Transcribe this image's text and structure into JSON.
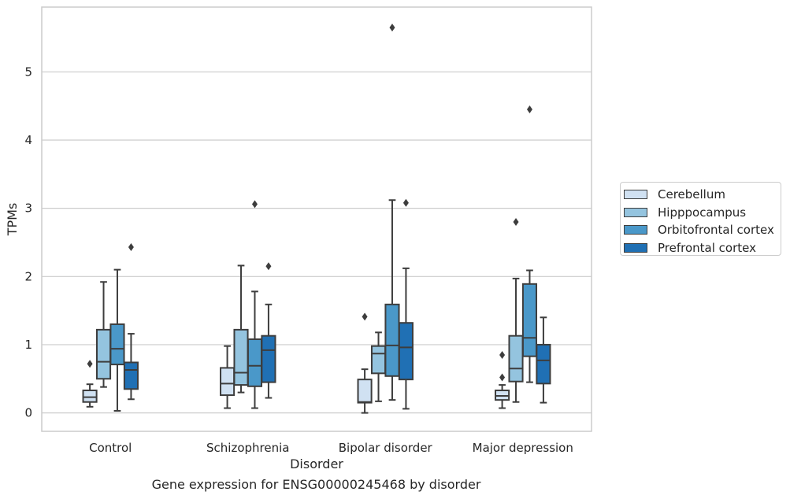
{
  "chart_data": {
    "type": "box",
    "categories": [
      "Control",
      "Schizophrenia",
      "Bipolar disorder",
      "Major depression"
    ],
    "xlabel": "Disorder",
    "ylabel": "TPMs",
    "ylim": [
      -0.27,
      5.95
    ],
    "yticks": [
      0,
      1,
      2,
      3,
      4,
      5
    ],
    "grid": true,
    "legend_position": "right",
    "series": [
      {
        "name": "Cerebellum",
        "color": "#d0e1f2",
        "boxes": [
          {
            "whislo": 0.09,
            "q1": 0.16,
            "med": 0.23,
            "q3": 0.33,
            "whishi": 0.42,
            "fliers": [
              0.72
            ]
          },
          {
            "whislo": 0.07,
            "q1": 0.26,
            "med": 0.43,
            "q3": 0.66,
            "whishi": 0.98,
            "fliers": []
          },
          {
            "whislo": 0.0,
            "q1": 0.15,
            "med": 0.16,
            "q3": 0.49,
            "whishi": 0.64,
            "fliers": [
              1.41
            ]
          },
          {
            "whislo": 0.07,
            "q1": 0.19,
            "med": 0.25,
            "q3": 0.33,
            "whishi": 0.41,
            "fliers": [
              0.52,
              0.85
            ]
          }
        ]
      },
      {
        "name": "Hipppocampus",
        "color": "#94c4df",
        "boxes": [
          {
            "whislo": 0.38,
            "q1": 0.5,
            "med": 0.75,
            "q3": 1.22,
            "whishi": 1.92,
            "fliers": []
          },
          {
            "whislo": 0.3,
            "q1": 0.41,
            "med": 0.59,
            "q3": 1.22,
            "whishi": 2.16,
            "fliers": []
          },
          {
            "whislo": 0.17,
            "q1": 0.58,
            "med": 0.87,
            "q3": 0.98,
            "whishi": 1.18,
            "fliers": []
          },
          {
            "whislo": 0.16,
            "q1": 0.46,
            "med": 0.65,
            "q3": 1.13,
            "whishi": 1.97,
            "fliers": [
              2.8
            ]
          }
        ]
      },
      {
        "name": "Orbitofrontal cortex",
        "color": "#4a98c9",
        "boxes": [
          {
            "whislo": 0.03,
            "q1": 0.71,
            "med": 0.94,
            "q3": 1.3,
            "whishi": 2.1,
            "fliers": []
          },
          {
            "whislo": 0.07,
            "q1": 0.39,
            "med": 0.69,
            "q3": 1.08,
            "whishi": 1.78,
            "fliers": [
              3.06
            ]
          },
          {
            "whislo": 0.19,
            "q1": 0.54,
            "med": 0.99,
            "q3": 1.59,
            "whishi": 3.12,
            "fliers": [
              5.65
            ]
          },
          {
            "whislo": 0.45,
            "q1": 0.83,
            "med": 1.1,
            "q3": 1.89,
            "whishi": 2.09,
            "fliers": [
              4.45
            ]
          }
        ]
      },
      {
        "name": "Prefrontal cortex",
        "color": "#2070b4",
        "boxes": [
          {
            "whislo": 0.2,
            "q1": 0.35,
            "med": 0.63,
            "q3": 0.74,
            "whishi": 1.16,
            "fliers": [
              2.43
            ]
          },
          {
            "whislo": 0.22,
            "q1": 0.45,
            "med": 0.92,
            "q3": 1.13,
            "whishi": 1.59,
            "fliers": [
              2.15
            ]
          },
          {
            "whislo": 0.06,
            "q1": 0.49,
            "med": 0.96,
            "q3": 1.32,
            "whishi": 2.12,
            "fliers": [
              3.08
            ]
          },
          {
            "whislo": 0.15,
            "q1": 0.43,
            "med": 0.77,
            "q3": 1.0,
            "whishi": 1.4,
            "fliers": []
          }
        ]
      }
    ]
  },
  "caption": "Gene expression for ENSG00000245468 by disorder"
}
